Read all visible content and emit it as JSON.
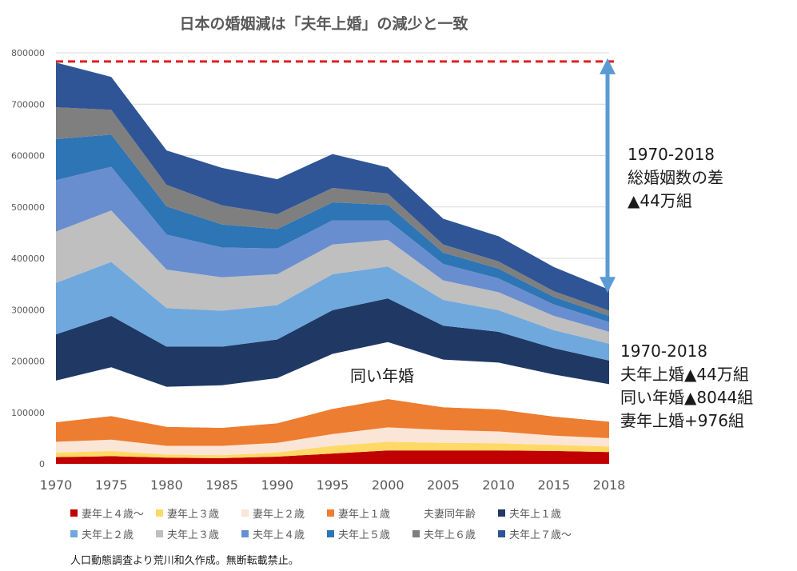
{
  "chart_data": {
    "type": "area",
    "stacked": true,
    "title": "日本の婚姻減は「夫年上婚」の減少と一致",
    "xlabel": "",
    "ylabel": "",
    "ylim": [
      0,
      800000
    ],
    "yticks": [
      "0",
      "100000",
      "200000",
      "300000",
      "400000",
      "500000",
      "600000",
      "700000",
      "800000"
    ],
    "x": [
      "1970",
      "1975",
      "1980",
      "1985",
      "1990",
      "1995",
      "2000",
      "2005",
      "2010",
      "2015",
      "2018"
    ],
    "series": [
      {
        "name": "妻年上４歳〜",
        "color": "#c00000",
        "values": [
          13000,
          15000,
          12000,
          11000,
          14000,
          20000,
          26000,
          26000,
          26000,
          25000,
          23000
        ]
      },
      {
        "name": "妻年上３歳",
        "color": "#ffd966",
        "values": [
          9000,
          10000,
          6000,
          6000,
          8000,
          15000,
          17000,
          15000,
          14000,
          12000,
          11000
        ]
      },
      {
        "name": "妻年上２歳",
        "color": "#fbe5d6",
        "values": [
          21000,
          22000,
          17000,
          18000,
          19000,
          23000,
          28000,
          25000,
          23000,
          18000,
          16000
        ]
      },
      {
        "name": "妻年上１歳",
        "color": "#ed7d31",
        "values": [
          38000,
          46000,
          37000,
          35000,
          38000,
          49000,
          55000,
          44000,
          43000,
          37000,
          32000
        ]
      },
      {
        "name": "夫妻同年齢",
        "color": "#ffffff",
        "values": [
          81000,
          95000,
          78000,
          83000,
          88000,
          107000,
          111000,
          93000,
          91000,
          82000,
          73000
        ]
      },
      {
        "name": "夫年上１歳",
        "color": "#203864",
        "values": [
          90000,
          100000,
          78000,
          75000,
          75000,
          85000,
          85000,
          66000,
          60000,
          51000,
          46000
        ]
      },
      {
        "name": "夫年上２歳",
        "color": "#6fa8dc",
        "values": [
          100000,
          105000,
          75000,
          70000,
          67000,
          70000,
          62000,
          50000,
          42000,
          35000,
          33000
        ]
      },
      {
        "name": "夫年上３歳",
        "color": "#bfbfbf",
        "values": [
          100000,
          100000,
          75000,
          65000,
          60000,
          58000,
          52000,
          38000,
          35000,
          28000,
          23000
        ]
      },
      {
        "name": "夫年上４歳",
        "color": "#698ed0",
        "values": [
          100000,
          85000,
          68000,
          58000,
          50000,
          47000,
          38000,
          32000,
          27000,
          22000,
          19000
        ]
      },
      {
        "name": "夫年上５歳",
        "color": "#2e75b6",
        "values": [
          80000,
          63000,
          55000,
          45000,
          38000,
          35000,
          30000,
          22000,
          19000,
          15000,
          12000
        ]
      },
      {
        "name": "夫年上６歳",
        "color": "#7f7f7f",
        "values": [
          62000,
          48000,
          42000,
          37000,
          29000,
          28000,
          22000,
          16000,
          14000,
          11000,
          10000
        ]
      },
      {
        "name": "夫年上７歳〜",
        "color": "#2f5597",
        "values": [
          87000,
          64000,
          67000,
          73000,
          68000,
          66000,
          51000,
          50000,
          49000,
          47000,
          41000
        ]
      }
    ],
    "reference_line": {
      "value": 783000,
      "color": "#e02020",
      "style": "dashed"
    },
    "annotations": {
      "total_diff": [
        "1970-2018",
        "総婚姻数の差",
        "▲44万組"
      ],
      "breakdown": [
        "1970-2018",
        "夫年上婚▲44万組",
        "同い年婚▲8044組",
        "妻年上婚+976組"
      ],
      "same_age_label": "同い年婚"
    },
    "arrow_color": "#5b9bd5",
    "legend_position": "bottom"
  },
  "source_note": "人口動態調査より荒川和久作成。無断転載禁止。"
}
